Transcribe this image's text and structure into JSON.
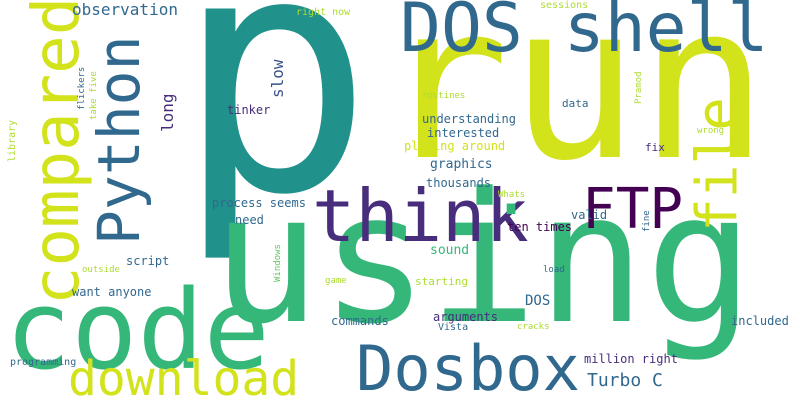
{
  "cloud": {
    "background": "#ffffff",
    "palette": {
      "teal": "#21918c",
      "lime": "#d2e21b",
      "green": "#35b779",
      "blue": "#31688e",
      "navy": "#3b528b",
      "purple": "#472d7b",
      "darkpurple": "#440154",
      "lightgreen": "#5ec962",
      "yellowgreen": "#addc30",
      "yellow": "#fde725"
    },
    "words": [
      {
        "id": "p",
        "text": "p"
      },
      {
        "id": "run",
        "text": "run"
      },
      {
        "id": "using",
        "text": "using"
      },
      {
        "id": "code",
        "text": "code"
      },
      {
        "id": "dosshell",
        "text": "DOS shell"
      },
      {
        "id": "compared",
        "text": "compared"
      },
      {
        "id": "python",
        "text": "Python"
      },
      {
        "id": "think",
        "text": "think"
      },
      {
        "id": "dot",
        "text": "."
      },
      {
        "id": "ftp",
        "text": "FTP"
      },
      {
        "id": "file",
        "text": "file"
      },
      {
        "id": "dosbox",
        "text": "Dosbox"
      },
      {
        "id": "download",
        "text": "download"
      },
      {
        "id": "observation",
        "text": "observation"
      },
      {
        "id": "turboc",
        "text": "Turbo C"
      },
      {
        "id": "slow",
        "text": "slow"
      },
      {
        "id": "long",
        "text": "long"
      },
      {
        "id": "tinker",
        "text": "tinker"
      },
      {
        "id": "understanding",
        "text": "understanding"
      },
      {
        "id": "interested",
        "text": "interested"
      },
      {
        "id": "playing",
        "text": "playing around"
      },
      {
        "id": "graphics",
        "text": "graphics"
      },
      {
        "id": "thousands",
        "text": "thousands"
      },
      {
        "id": "process",
        "text": "process seems"
      },
      {
        "id": "need",
        "text": "need"
      },
      {
        "id": "valid",
        "text": "valid"
      },
      {
        "id": "tentimes",
        "text": "ten times"
      },
      {
        "id": "sound",
        "text": "sound"
      },
      {
        "id": "script",
        "text": "script"
      },
      {
        "id": "wantanyone",
        "text": "want anyone"
      },
      {
        "id": "dos",
        "text": "DOS"
      },
      {
        "id": "commands",
        "text": "commands"
      },
      {
        "id": "arguments",
        "text": "arguments"
      },
      {
        "id": "vista",
        "text": "Vista"
      },
      {
        "id": "starting",
        "text": "starting"
      },
      {
        "id": "included",
        "text": "included"
      },
      {
        "id": "million",
        "text": "million right"
      },
      {
        "id": "programming",
        "text": "programming"
      },
      {
        "id": "library",
        "text": "library"
      },
      {
        "id": "flickers",
        "text": "flickers"
      },
      {
        "id": "takefive",
        "text": "take five"
      },
      {
        "id": "rightnow",
        "text": "right now"
      },
      {
        "id": "sessions",
        "text": "sessions"
      },
      {
        "id": "routines",
        "text": "routines"
      },
      {
        "id": "data",
        "text": "data"
      },
      {
        "id": "pramod",
        "text": "Pramod"
      },
      {
        "id": "wrong",
        "text": "wrong"
      },
      {
        "id": "fix",
        "text": "fix"
      },
      {
        "id": "whats",
        "text": "Whats"
      },
      {
        "id": "fine",
        "text": "fine"
      },
      {
        "id": "windows",
        "text": "Windows"
      },
      {
        "id": "outside",
        "text": "outside"
      },
      {
        "id": "game",
        "text": "game"
      },
      {
        "id": "load",
        "text": "load"
      },
      {
        "id": "cracks",
        "text": "cracks"
      }
    ]
  }
}
